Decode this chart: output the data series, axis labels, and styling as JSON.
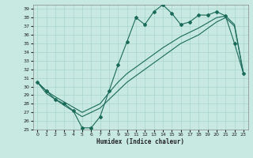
{
  "xlabel": "Humidex (Indice chaleur)",
  "bg_color": "#c8e8e2",
  "line_color": "#1a6b5a",
  "grid_color": "#a8d5cc",
  "ylim": [
    25,
    39.5
  ],
  "xlim": [
    -0.5,
    23.5
  ],
  "yticks": [
    25,
    26,
    27,
    28,
    29,
    30,
    31,
    32,
    33,
    34,
    35,
    36,
    37,
    38,
    39
  ],
  "xticks": [
    0,
    1,
    2,
    3,
    4,
    5,
    6,
    7,
    8,
    9,
    10,
    11,
    12,
    13,
    14,
    15,
    16,
    17,
    18,
    19,
    20,
    21,
    22,
    23
  ],
  "line1_x": [
    0,
    1,
    2,
    3,
    4,
    5,
    6,
    7,
    8,
    9,
    10,
    11,
    12,
    13,
    14,
    15,
    16,
    17,
    18,
    19,
    20,
    21,
    22,
    23
  ],
  "line1_y": [
    30.5,
    29.5,
    28.5,
    28.0,
    27.2,
    25.2,
    25.2,
    26.5,
    29.5,
    32.5,
    35.2,
    38.0,
    37.2,
    38.7,
    39.5,
    38.5,
    37.2,
    37.5,
    38.3,
    38.3,
    38.7,
    38.2,
    35.0,
    31.5
  ],
  "line2_x": [
    0,
    1,
    2,
    3,
    5,
    7,
    8,
    9,
    10,
    12,
    14,
    16,
    18,
    20,
    21,
    22,
    23
  ],
  "line2_y": [
    30.5,
    29.2,
    28.5,
    27.8,
    26.5,
    27.5,
    28.5,
    29.5,
    30.5,
    32.0,
    33.5,
    35.0,
    36.0,
    37.5,
    38.0,
    37.0,
    31.5
  ],
  "line3_x": [
    0,
    1,
    2,
    3,
    5,
    7,
    8,
    9,
    10,
    12,
    14,
    16,
    18,
    20,
    21,
    22,
    23
  ],
  "line3_y": [
    30.5,
    29.5,
    28.8,
    28.2,
    27.0,
    28.0,
    29.3,
    30.5,
    31.5,
    33.0,
    34.5,
    35.8,
    36.8,
    38.0,
    38.2,
    37.2,
    31.5
  ]
}
